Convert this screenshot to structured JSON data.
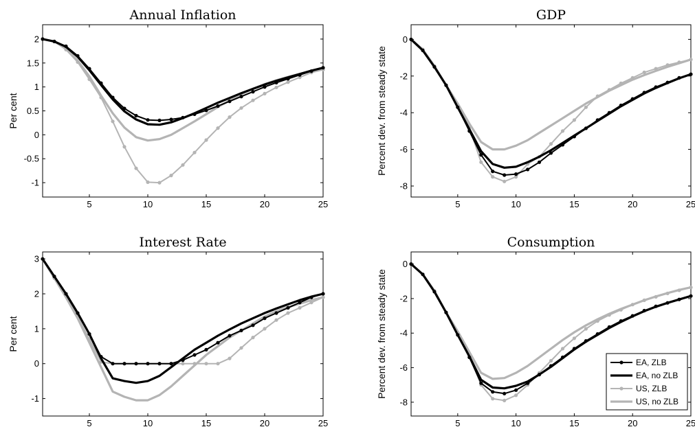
{
  "chart_data": [
    {
      "type": "line",
      "title": "Annual Inflation",
      "xlabel": "",
      "ylabel": "Per cent",
      "xlim": [
        1,
        25
      ],
      "ylim": [
        -1.3,
        2.3
      ],
      "xticks": [
        5,
        10,
        15,
        20,
        25
      ],
      "yticks": [
        -1,
        -0.5,
        0,
        0.5,
        1,
        1.5,
        2
      ],
      "ytick_labels": [
        "-1",
        "-0.5",
        "0",
        "0.5",
        "1",
        "1.5",
        "2"
      ],
      "x": [
        1,
        2,
        3,
        4,
        5,
        6,
        7,
        8,
        9,
        10,
        11,
        12,
        13,
        14,
        15,
        16,
        17,
        18,
        19,
        20,
        21,
        22,
        23,
        24,
        25
      ],
      "series": [
        {
          "name": "EA, ZLB",
          "values": [
            2.0,
            1.95,
            1.85,
            1.65,
            1.38,
            1.08,
            0.78,
            0.55,
            0.4,
            0.31,
            0.3,
            0.32,
            0.36,
            0.43,
            0.51,
            0.6,
            0.7,
            0.8,
            0.9,
            1.0,
            1.09,
            1.17,
            1.25,
            1.33,
            1.4
          ]
        },
        {
          "name": "EA, no ZLB",
          "values": [
            2.0,
            1.95,
            1.84,
            1.63,
            1.35,
            1.04,
            0.74,
            0.49,
            0.32,
            0.22,
            0.21,
            0.26,
            0.35,
            0.45,
            0.56,
            0.67,
            0.77,
            0.87,
            0.96,
            1.05,
            1.13,
            1.2,
            1.27,
            1.34,
            1.4
          ]
        },
        {
          "name": "US, ZLB",
          "values": [
            2.0,
            1.95,
            1.78,
            1.52,
            1.16,
            0.78,
            0.28,
            -0.25,
            -0.7,
            -0.99,
            -1.0,
            -0.85,
            -0.63,
            -0.37,
            -0.11,
            0.14,
            0.37,
            0.56,
            0.72,
            0.86,
            0.99,
            1.1,
            1.2,
            1.3,
            1.36
          ]
        },
        {
          "name": "US, no ZLB",
          "values": [
            2.0,
            1.95,
            1.8,
            1.55,
            1.22,
            0.82,
            0.45,
            0.15,
            -0.05,
            -0.12,
            -0.09,
            0.0,
            0.14,
            0.28,
            0.43,
            0.58,
            0.72,
            0.85,
            0.96,
            1.06,
            1.14,
            1.21,
            1.27,
            1.33,
            1.38
          ]
        }
      ]
    },
    {
      "type": "line",
      "title": "GDP",
      "xlabel": "",
      "ylabel": "Percent dev. from steady state",
      "xlim": [
        1,
        25
      ],
      "ylim": [
        -8.6,
        0.8
      ],
      "xticks": [
        5,
        10,
        15,
        20,
        25
      ],
      "yticks": [
        -8,
        -6,
        -4,
        -2,
        0
      ],
      "ytick_labels": [
        "-8",
        "-6",
        "-4",
        "-2",
        "0"
      ],
      "x": [
        1,
        2,
        3,
        4,
        5,
        6,
        7,
        8,
        9,
        10,
        11,
        12,
        13,
        14,
        15,
        16,
        17,
        18,
        19,
        20,
        21,
        22,
        23,
        24,
        25
      ],
      "series": [
        {
          "name": "EA, ZLB",
          "values": [
            0,
            -0.6,
            -1.5,
            -2.5,
            -3.7,
            -5.0,
            -6.3,
            -7.2,
            -7.4,
            -7.35,
            -7.1,
            -6.7,
            -6.2,
            -5.75,
            -5.3,
            -4.85,
            -4.4,
            -4.0,
            -3.6,
            -3.25,
            -2.9,
            -2.6,
            -2.35,
            -2.1,
            -1.9
          ]
        },
        {
          "name": "EA, no ZLB",
          "values": [
            0,
            -0.6,
            -1.5,
            -2.5,
            -3.7,
            -4.9,
            -6.1,
            -6.8,
            -7.0,
            -6.95,
            -6.7,
            -6.4,
            -6.05,
            -5.65,
            -5.25,
            -4.85,
            -4.45,
            -4.05,
            -3.65,
            -3.3,
            -2.95,
            -2.65,
            -2.38,
            -2.12,
            -1.9
          ]
        },
        {
          "name": "US, ZLB",
          "values": [
            0,
            -0.55,
            -1.45,
            -2.5,
            -3.6,
            -4.8,
            -6.7,
            -7.5,
            -7.75,
            -7.5,
            -6.8,
            -6.4,
            -5.7,
            -5.0,
            -4.4,
            -3.7,
            -3.1,
            -2.75,
            -2.4,
            -2.1,
            -1.8,
            -1.6,
            -1.4,
            -1.25,
            -1.1
          ]
        },
        {
          "name": "US, no ZLB",
          "values": [
            0,
            -0.55,
            -1.45,
            -2.5,
            -3.5,
            -4.6,
            -5.6,
            -6.0,
            -6.0,
            -5.8,
            -5.5,
            -5.1,
            -4.7,
            -4.3,
            -3.9,
            -3.5,
            -3.15,
            -2.8,
            -2.5,
            -2.2,
            -1.95,
            -1.72,
            -1.5,
            -1.3,
            -1.1
          ]
        }
      ]
    },
    {
      "type": "line",
      "title": "Interest Rate",
      "xlabel": "",
      "ylabel": "Per cent",
      "xlim": [
        1,
        25
      ],
      "ylim": [
        -1.5,
        3.2
      ],
      "xticks": [
        5,
        10,
        15,
        20,
        25
      ],
      "yticks": [
        -1,
        0,
        1,
        2,
        3
      ],
      "ytick_labels": [
        "-1",
        "0",
        "1",
        "2",
        "3"
      ],
      "x": [
        1,
        2,
        3,
        4,
        5,
        6,
        7,
        8,
        9,
        10,
        11,
        12,
        13,
        14,
        15,
        16,
        17,
        18,
        19,
        20,
        21,
        22,
        23,
        24,
        25
      ],
      "series": [
        {
          "name": "EA, ZLB",
          "values": [
            3.0,
            2.5,
            2.0,
            1.45,
            0.85,
            0.2,
            0.0,
            0.0,
            0.0,
            0.0,
            0.0,
            0.0,
            0.1,
            0.25,
            0.4,
            0.6,
            0.8,
            0.95,
            1.1,
            1.3,
            1.45,
            1.6,
            1.75,
            1.9,
            2.0
          ]
        },
        {
          "name": "EA, no ZLB",
          "values": [
            3.0,
            2.5,
            2.0,
            1.45,
            0.85,
            0.15,
            -0.42,
            -0.5,
            -0.55,
            -0.5,
            -0.35,
            -0.1,
            0.15,
            0.4,
            0.6,
            0.8,
            0.98,
            1.15,
            1.3,
            1.45,
            1.58,
            1.7,
            1.82,
            1.92,
            2.0
          ]
        },
        {
          "name": "US, ZLB",
          "values": [
            3.0,
            2.45,
            1.95,
            1.35,
            0.7,
            0.05,
            0.0,
            0.0,
            0.0,
            0.0,
            0.0,
            0.0,
            0.0,
            0.0,
            0.0,
            0.0,
            0.15,
            0.45,
            0.75,
            1.0,
            1.25,
            1.45,
            1.6,
            1.75,
            1.9
          ]
        },
        {
          "name": "US, no ZLB",
          "values": [
            3.0,
            2.45,
            1.9,
            1.3,
            0.6,
            -0.1,
            -0.8,
            -0.95,
            -1.05,
            -1.05,
            -0.9,
            -0.65,
            -0.35,
            -0.05,
            0.25,
            0.5,
            0.75,
            0.95,
            1.15,
            1.35,
            1.5,
            1.62,
            1.72,
            1.82,
            1.9
          ]
        }
      ]
    },
    {
      "type": "line",
      "title": "Consumption",
      "xlabel": "",
      "ylabel": "Percent dev. from steady state",
      "xlim": [
        1,
        25
      ],
      "ylim": [
        -8.8,
        0.7
      ],
      "xticks": [
        5,
        10,
        15,
        20,
        25
      ],
      "yticks": [
        -8,
        -6,
        -4,
        -2,
        0
      ],
      "ytick_labels": [
        "-8",
        "-6",
        "-4",
        "-2",
        "0"
      ],
      "x": [
        1,
        2,
        3,
        4,
        5,
        6,
        7,
        8,
        9,
        10,
        11,
        12,
        13,
        14,
        15,
        16,
        17,
        18,
        19,
        20,
        21,
        22,
        23,
        24,
        25
      ],
      "series": [
        {
          "name": "EA, ZLB",
          "values": [
            0,
            -0.6,
            -1.6,
            -2.8,
            -4.1,
            -5.4,
            -6.9,
            -7.4,
            -7.5,
            -7.3,
            -6.9,
            -6.4,
            -5.9,
            -5.4,
            -4.9,
            -4.45,
            -4.05,
            -3.65,
            -3.3,
            -3.0,
            -2.7,
            -2.45,
            -2.25,
            -2.05,
            -1.85
          ]
        },
        {
          "name": "EA, no ZLB",
          "values": [
            0,
            -0.6,
            -1.6,
            -2.8,
            -4.1,
            -5.35,
            -6.7,
            -7.15,
            -7.2,
            -7.05,
            -6.8,
            -6.4,
            -5.95,
            -5.45,
            -4.95,
            -4.5,
            -4.1,
            -3.7,
            -3.35,
            -3.03,
            -2.73,
            -2.47,
            -2.25,
            -2.05,
            -1.85
          ]
        },
        {
          "name": "US, ZLB",
          "values": [
            0,
            -0.6,
            -1.55,
            -2.8,
            -4.0,
            -5.3,
            -7.0,
            -7.8,
            -7.9,
            -7.6,
            -7.0,
            -6.3,
            -5.6,
            -4.9,
            -4.3,
            -3.75,
            -3.3,
            -2.95,
            -2.65,
            -2.35,
            -2.1,
            -1.9,
            -1.7,
            -1.52,
            -1.35
          ]
        },
        {
          "name": "US, no ZLB",
          "values": [
            0,
            -0.6,
            -1.55,
            -2.8,
            -3.9,
            -5.1,
            -6.3,
            -6.65,
            -6.6,
            -6.3,
            -5.9,
            -5.4,
            -4.9,
            -4.4,
            -3.95,
            -3.55,
            -3.2,
            -2.88,
            -2.6,
            -2.35,
            -2.1,
            -1.88,
            -1.68,
            -1.5,
            -1.35
          ]
        }
      ]
    }
  ],
  "legend": {
    "placement": "lower-right of Consumption panel",
    "items": [
      "EA, ZLB",
      "EA, no ZLB",
      "US, ZLB",
      "US, no ZLB"
    ]
  },
  "series_style": {
    "EA, ZLB": {
      "color": "#000000",
      "markers": true
    },
    "EA, no ZLB": {
      "color": "#000000",
      "markers": false
    },
    "US, ZLB": {
      "color": "#b4b4b4",
      "markers": true
    },
    "US, no ZLB": {
      "color": "#b4b4b4",
      "markers": false
    }
  }
}
